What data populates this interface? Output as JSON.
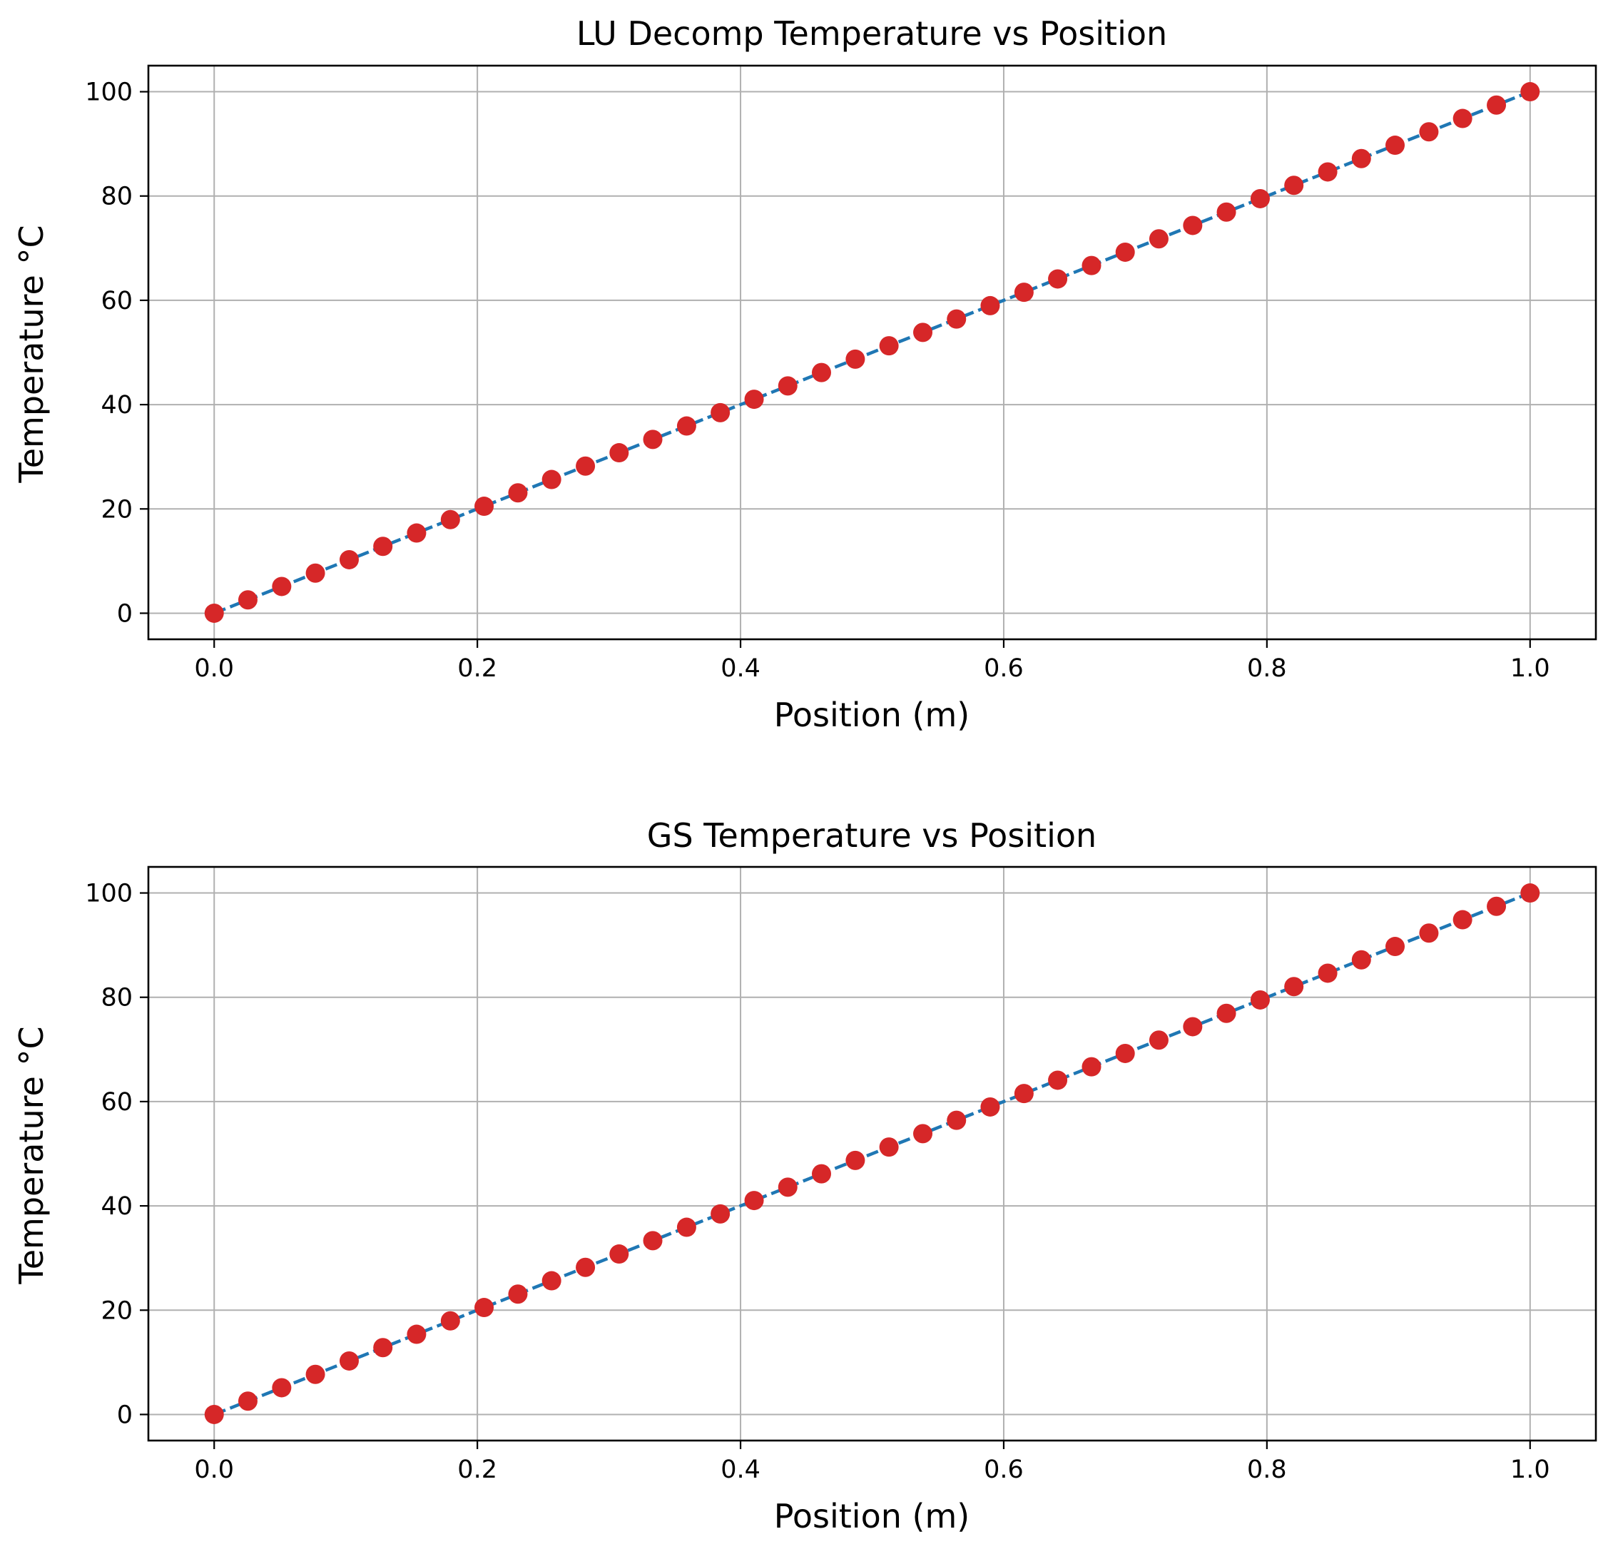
{
  "colors": {
    "line": "#1f77b4",
    "marker": "#d62728",
    "grid": "#b0b0b0",
    "frame": "#000000",
    "background": "#ffffff"
  },
  "chart_data": [
    {
      "type": "line",
      "title": "LU Decomp Temperature vs Position",
      "xlabel": "Position (m)",
      "ylabel": "Temperature $^\\circ$C",
      "ylabel_display": "Temperature °C",
      "xlim": [
        -0.05,
        1.05
      ],
      "ylim": [
        -5,
        105
      ],
      "xticks": [
        0.0,
        0.2,
        0.4,
        0.6,
        0.8,
        1.0
      ],
      "xtick_labels": [
        "0.0",
        "0.2",
        "0.4",
        "0.6",
        "0.8",
        "1.0"
      ],
      "yticks": [
        0,
        20,
        40,
        60,
        80,
        100
      ],
      "ytick_labels": [
        "0",
        "20",
        "40",
        "60",
        "80",
        "100"
      ],
      "grid": true,
      "series": [
        {
          "name": "temperature",
          "line_style": "dashed",
          "marker": "circle",
          "x": [
            0.0,
            0.0256,
            0.0513,
            0.0769,
            0.1026,
            0.1282,
            0.1538,
            0.1795,
            0.2051,
            0.2308,
            0.2564,
            0.2821,
            0.3077,
            0.3333,
            0.359,
            0.3846,
            0.4103,
            0.4359,
            0.4615,
            0.4872,
            0.5128,
            0.5385,
            0.5641,
            0.5897,
            0.6154,
            0.641,
            0.6667,
            0.6923,
            0.7179,
            0.7436,
            0.7692,
            0.7949,
            0.8205,
            0.8462,
            0.8718,
            0.8974,
            0.9231,
            0.9487,
            0.9744,
            1.0
          ],
          "y": [
            0.0,
            2.56,
            5.13,
            7.69,
            10.26,
            12.82,
            15.38,
            17.95,
            20.51,
            23.08,
            25.64,
            28.21,
            30.77,
            33.33,
            35.9,
            38.46,
            41.03,
            43.59,
            46.15,
            48.72,
            51.28,
            53.85,
            56.41,
            58.97,
            61.54,
            64.1,
            66.67,
            69.23,
            71.79,
            74.36,
            76.92,
            79.49,
            82.05,
            84.62,
            87.18,
            89.74,
            92.31,
            94.87,
            97.44,
            100.0
          ]
        }
      ]
    },
    {
      "type": "line",
      "title": "GS Temperature vs Position",
      "xlabel": "Position (m)",
      "ylabel": "Temperature $^\\circ$C",
      "ylabel_display": "Temperature °C",
      "xlim": [
        -0.05,
        1.05
      ],
      "ylim": [
        -5,
        105
      ],
      "xticks": [
        0.0,
        0.2,
        0.4,
        0.6,
        0.8,
        1.0
      ],
      "xtick_labels": [
        "0.0",
        "0.2",
        "0.4",
        "0.6",
        "0.8",
        "1.0"
      ],
      "yticks": [
        0,
        20,
        40,
        60,
        80,
        100
      ],
      "ytick_labels": [
        "0",
        "20",
        "40",
        "60",
        "80",
        "100"
      ],
      "grid": true,
      "series": [
        {
          "name": "temperature",
          "line_style": "dashed",
          "marker": "circle",
          "x": [
            0.0,
            0.0256,
            0.0513,
            0.0769,
            0.1026,
            0.1282,
            0.1538,
            0.1795,
            0.2051,
            0.2308,
            0.2564,
            0.2821,
            0.3077,
            0.3333,
            0.359,
            0.3846,
            0.4103,
            0.4359,
            0.4615,
            0.4872,
            0.5128,
            0.5385,
            0.5641,
            0.5897,
            0.6154,
            0.641,
            0.6667,
            0.6923,
            0.7179,
            0.7436,
            0.7692,
            0.7949,
            0.8205,
            0.8462,
            0.8718,
            0.8974,
            0.9231,
            0.9487,
            0.9744,
            1.0
          ],
          "y": [
            0.0,
            2.56,
            5.13,
            7.69,
            10.26,
            12.82,
            15.38,
            17.95,
            20.51,
            23.08,
            25.64,
            28.21,
            30.77,
            33.33,
            35.9,
            38.46,
            41.03,
            43.59,
            46.15,
            48.72,
            51.28,
            53.85,
            56.41,
            58.97,
            61.54,
            64.1,
            66.67,
            69.23,
            71.79,
            74.36,
            76.92,
            79.49,
            82.05,
            84.62,
            87.18,
            89.74,
            92.31,
            94.87,
            97.44,
            100.0
          ]
        }
      ]
    }
  ]
}
